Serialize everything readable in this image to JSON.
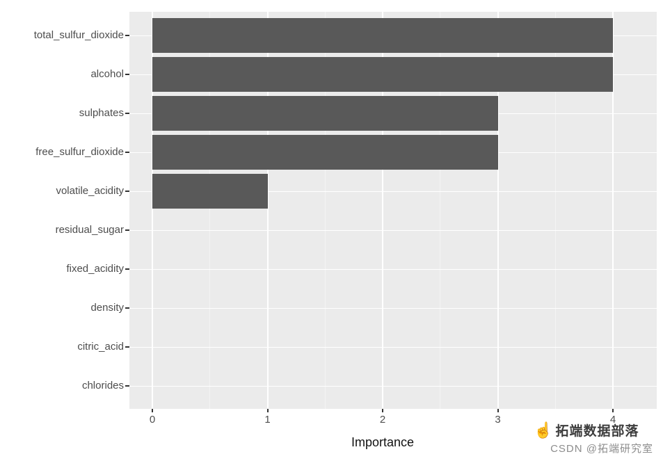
{
  "chart_data": {
    "type": "bar",
    "orientation": "horizontal",
    "title": "",
    "xlabel": "Importance",
    "categories": [
      "total_sulfur_dioxide",
      "alcohol",
      "sulphates",
      "free_sulfur_dioxide",
      "volatile_acidity",
      "residual_sugar",
      "fixed_acidity",
      "density",
      "citric_acid",
      "chlorides"
    ],
    "values": [
      4,
      4,
      3,
      3,
      1,
      0,
      0,
      0,
      0,
      0
    ],
    "x_ticks": [
      0,
      1,
      2,
      3,
      4
    ],
    "xlim": [
      -0.2,
      4.38
    ],
    "grid": "on",
    "legend": "none",
    "colors": {
      "bar": "#595959",
      "panel_bg": "#EBEBEB",
      "grid_major": "#FFFFFF",
      "grid_minor": "#F4F4F4",
      "axis_text": "#4D4D4D",
      "tick_mark": "#333333"
    }
  },
  "watermark": {
    "hand_icon": "☝",
    "line1": "拓端数据部落",
    "line2": "CSDN @拓端研究室"
  }
}
